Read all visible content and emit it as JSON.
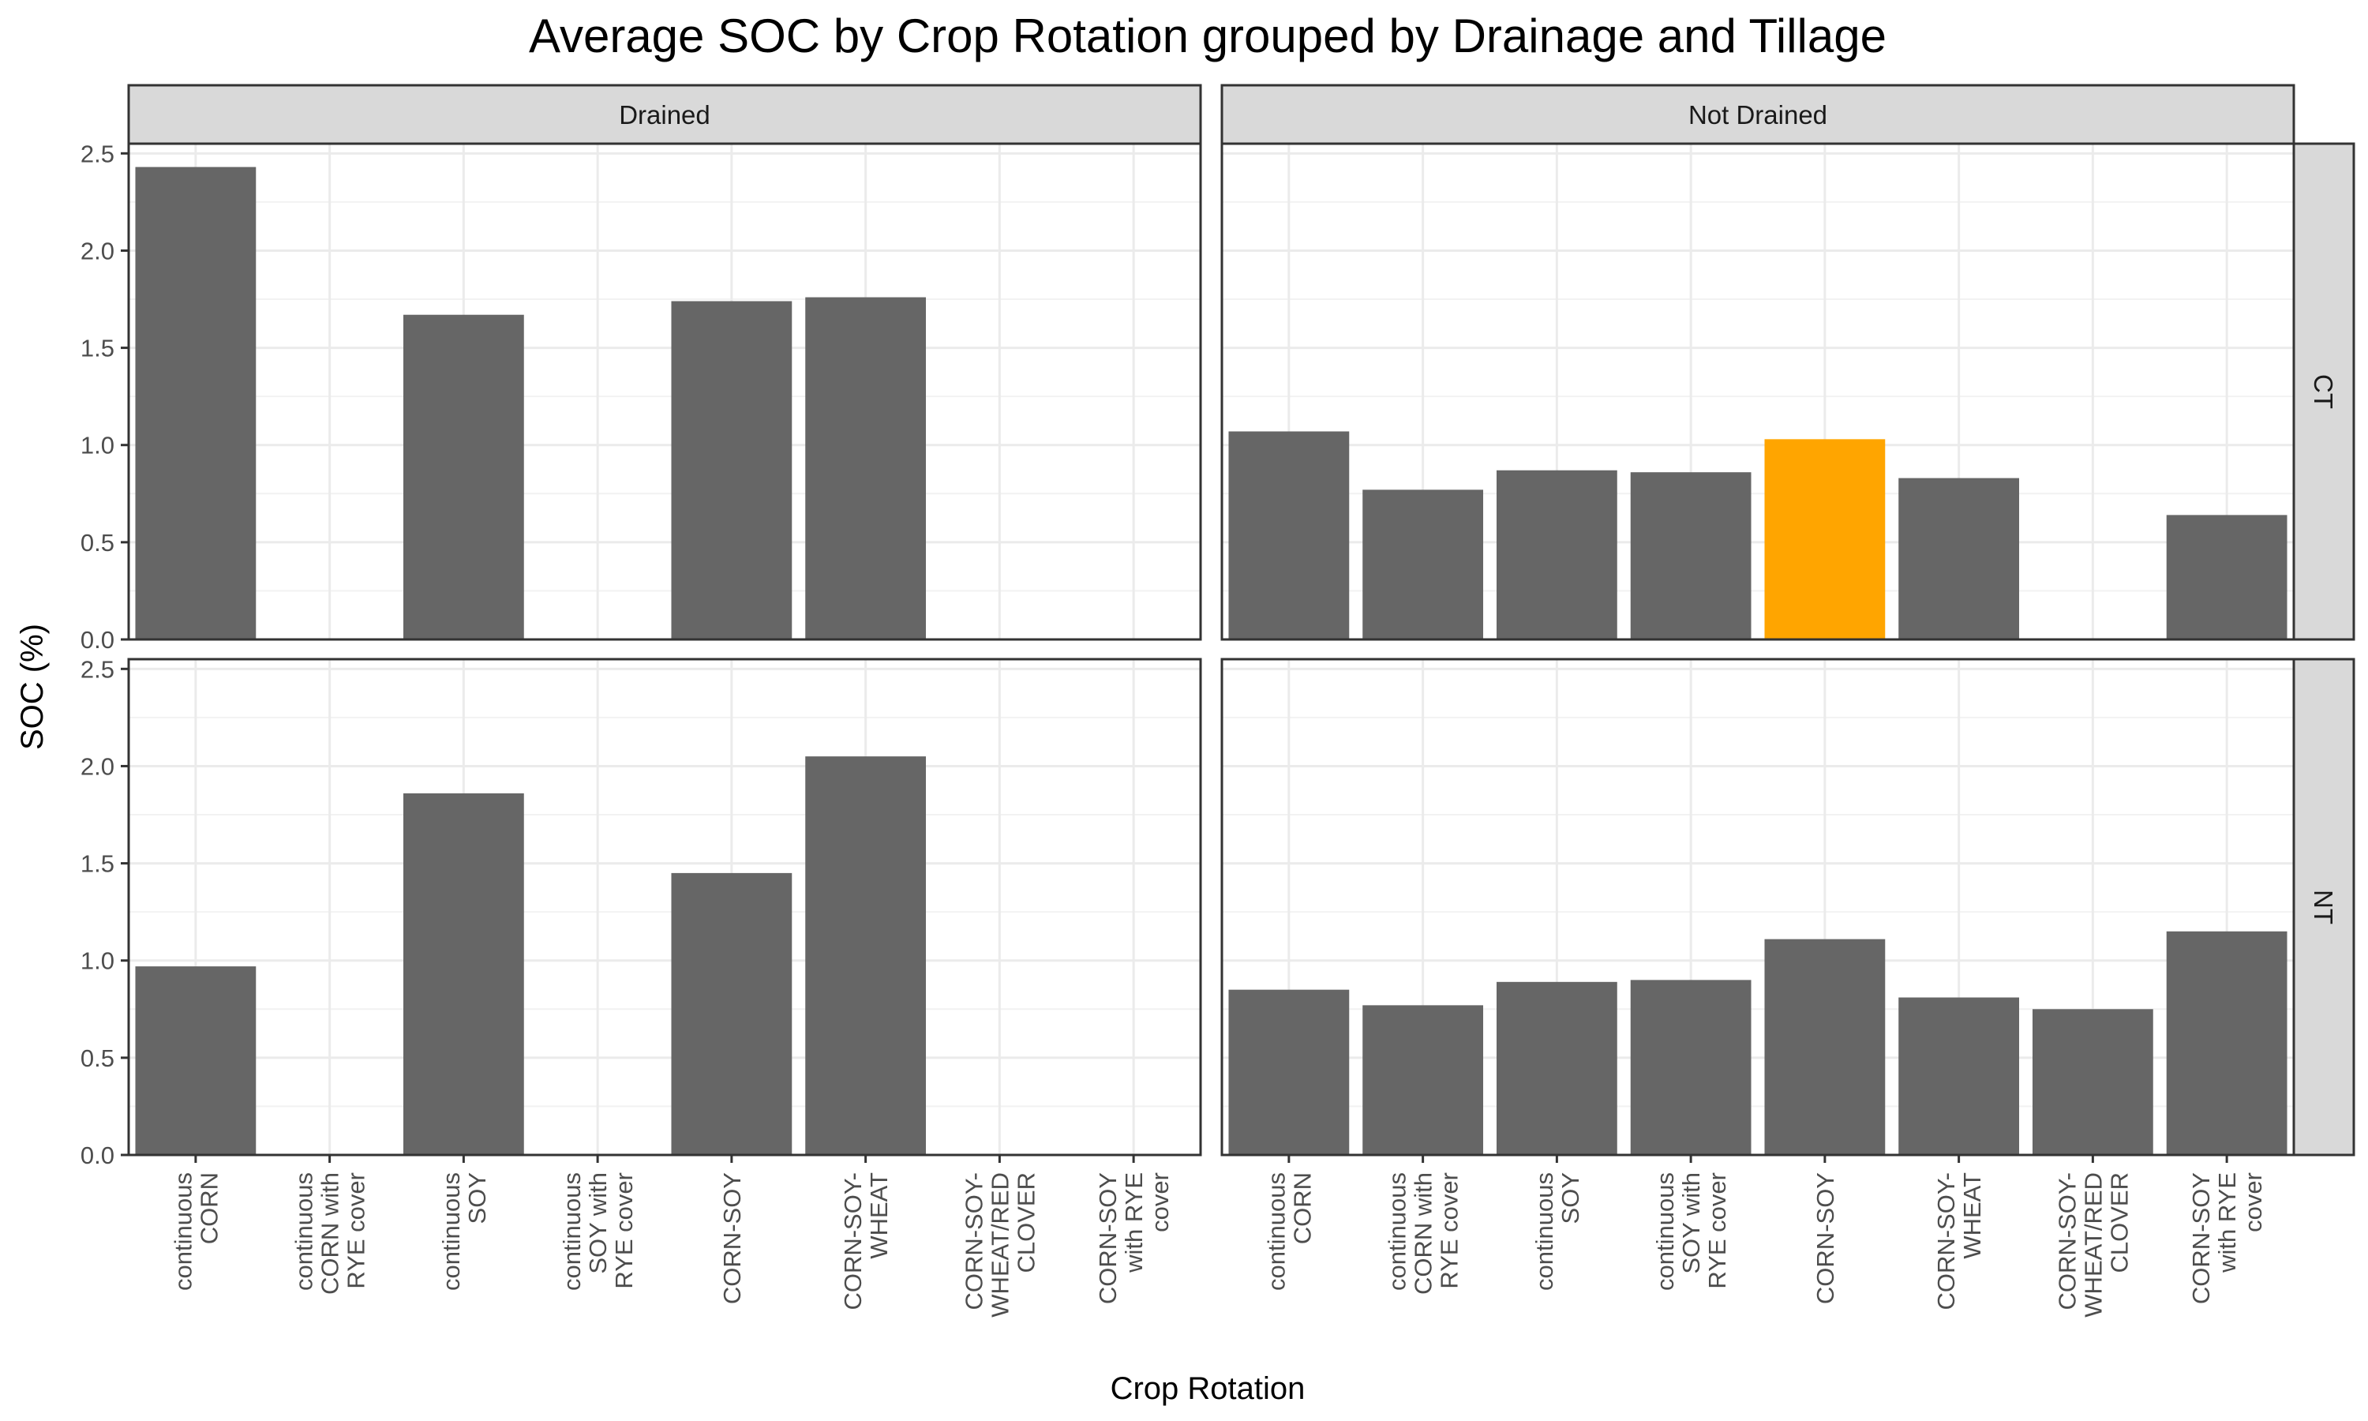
{
  "chart_data": {
    "type": "bar",
    "title": "Average SOC by Crop Rotation grouped by Drainage and Tillage",
    "xlabel": "Crop Rotation",
    "ylabel": "SOC (%)",
    "ylim": [
      0,
      2.55
    ],
    "y_ticks": [
      "0.0",
      "0.5",
      "1.0",
      "1.5",
      "2.0",
      "2.5"
    ],
    "grid": true,
    "default_bar_color": "#666666",
    "highlight_color": "#FFA500",
    "categories": [
      "continuous CORN",
      "continuous CORN with RYE cover",
      "continuous SOY",
      "continuous SOY with RYE cover",
      "CORN-SOY",
      "CORN-SOY-WHEAT",
      "CORN-SOY-WHEAT/RED CLOVER",
      "CORN-SOY with RYE cover"
    ],
    "category_labels": [
      [
        "continuous",
        "CORN"
      ],
      [
        "continuous",
        "CORN with",
        "RYE cover"
      ],
      [
        "continuous",
        "SOY"
      ],
      [
        "continuous",
        "SOY with",
        "RYE cover"
      ],
      [
        "CORN-SOY"
      ],
      [
        "CORN-SOY-",
        "WHEAT"
      ],
      [
        "CORN-SOY-",
        "WHEAT/RED",
        "CLOVER"
      ],
      [
        "CORN-SOY",
        "with RYE",
        "cover"
      ]
    ],
    "column_facets": [
      "Drained",
      "Not Drained"
    ],
    "row_facets": [
      "CT",
      "NT"
    ],
    "panels": [
      {
        "col": "Drained",
        "row": "CT",
        "values": [
          2.43,
          null,
          1.67,
          null,
          1.74,
          1.76,
          null,
          null
        ]
      },
      {
        "col": "Not Drained",
        "row": "CT",
        "values": [
          1.07,
          0.77,
          0.87,
          0.86,
          1.03,
          0.83,
          null,
          0.64
        ],
        "highlight_index": 4
      },
      {
        "col": "Drained",
        "row": "NT",
        "values": [
          0.97,
          null,
          1.86,
          null,
          1.45,
          2.05,
          null,
          null
        ]
      },
      {
        "col": "Not Drained",
        "row": "NT",
        "values": [
          0.85,
          0.77,
          0.89,
          0.9,
          1.11,
          0.81,
          0.75,
          1.15
        ]
      }
    ]
  }
}
